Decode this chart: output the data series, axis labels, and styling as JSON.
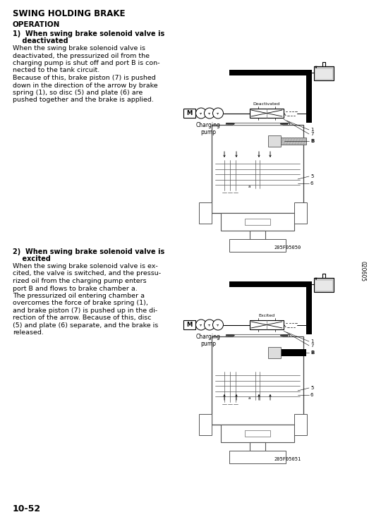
{
  "bg_color": "#ffffff",
  "title": "SWING HOLDING BRAKE",
  "section": "OPERATION",
  "item1_head1": "1)  When swing brake solenoid valve is",
  "item1_head2": "    deactivated",
  "item1_body": [
    "When the swing brake solenoid valve is",
    "deactivated, the pressurized oil from the",
    "charging pump is shut off and port B is con-",
    "nected to the tank circuit.",
    "Because of this, brake piston (7) is pushed",
    "down in the direction of the arrow by brake",
    "spring (1), so disc (5) and plate (6) are",
    "pushed together and the brake is applied."
  ],
  "item2_head1": "2)  When swing brake solenoid valve is",
  "item2_head2": "    excited",
  "item2_body": [
    "When the swing brake solenoid valve is ex-",
    "cited, the valve is switched, and the pressu-",
    "rized oil from the charging pump enters",
    "port B and flows to brake chamber a.",
    "The pressurized oil entering chamber a",
    "overcomes the force of brake spring (1),",
    "and brake piston (7) is pushed up in the di-",
    "rection of the arrow. Because of this, disc",
    "(5) and plate (6) separate, and the brake is",
    "released."
  ],
  "page_num": "10-52",
  "side_label": "020605",
  "fig1_code": "205F05050",
  "fig2_code": "205F05051",
  "lbl_deactivated": "Deactivated",
  "lbl_excited": "Excited",
  "lbl_charging": "Charging\npump"
}
